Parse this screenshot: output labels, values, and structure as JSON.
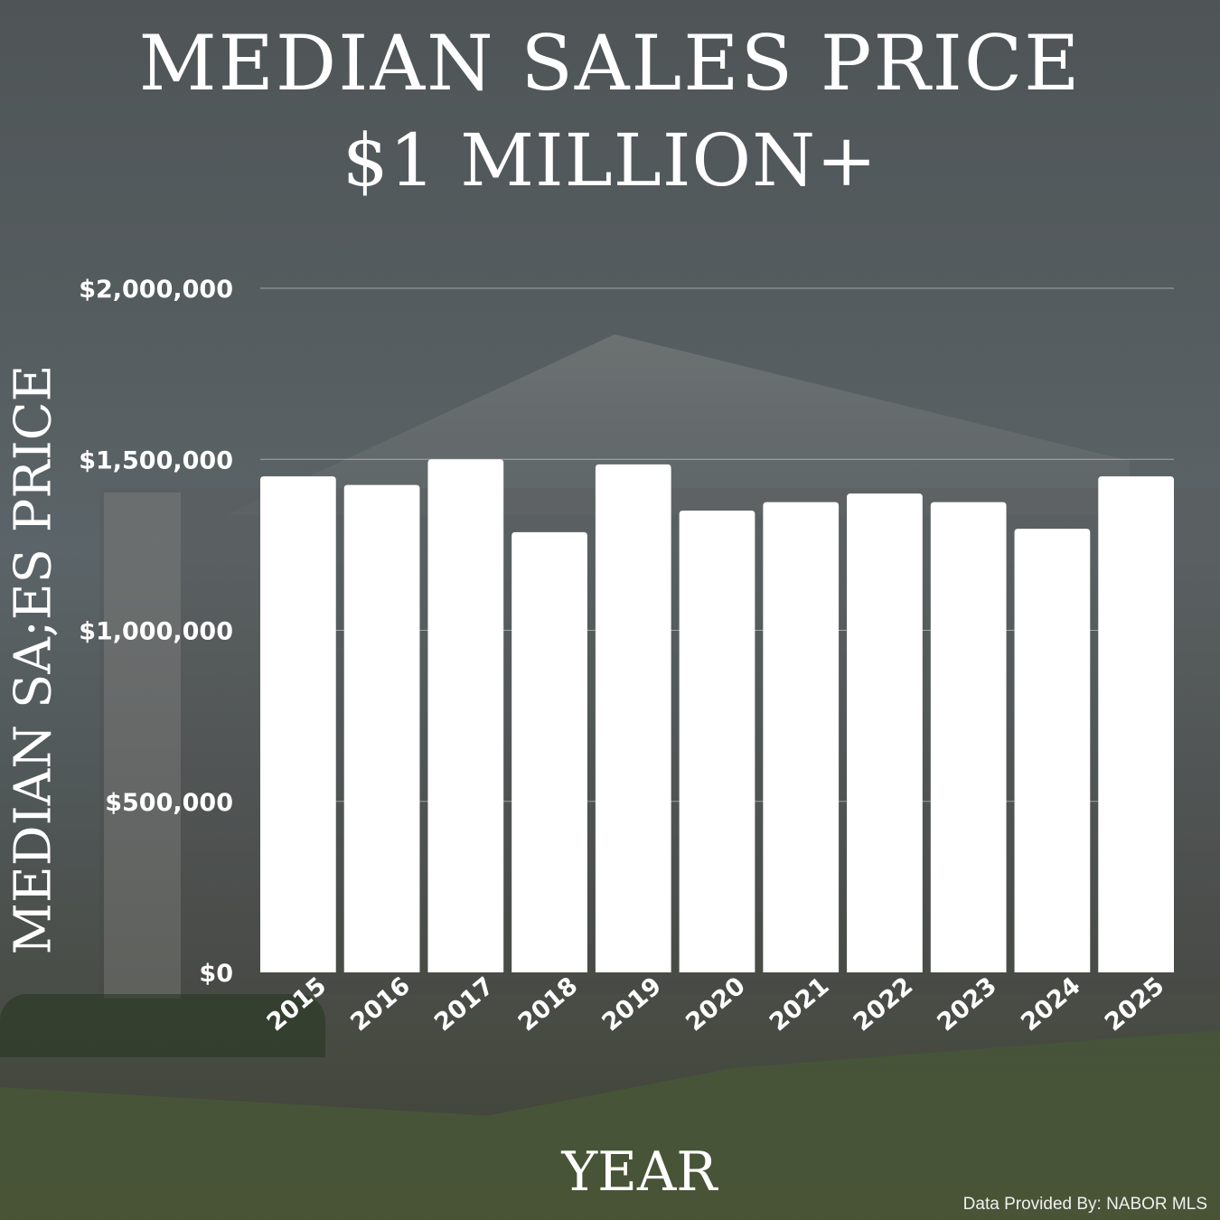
{
  "chart_data": {
    "type": "bar",
    "title": "MEDIAN SALES PRICE",
    "subtitle": "$1 MILLION+",
    "xlabel": "YEAR",
    "ylabel": "MEDIAN SA;ES PRICE",
    "categories": [
      "2015",
      "2016",
      "2017",
      "2018",
      "2019",
      "2020",
      "2021",
      "2022",
      "2023",
      "2024",
      "2025"
    ],
    "values": [
      1450000,
      1425000,
      1500000,
      1287000,
      1485000,
      1350000,
      1375000,
      1400000,
      1375000,
      1297000,
      1450000
    ],
    "ylim": [
      0,
      2000000
    ],
    "yticks": [
      0,
      500000,
      1000000,
      1500000,
      2000000
    ],
    "ytick_labels": [
      "$0",
      "$500,000",
      "$1,000,000",
      "$1,500,000",
      "$2,000,000"
    ],
    "grid": true,
    "bar_color": "#ffffff"
  },
  "source_note": "Data Provided By: NABOR MLS"
}
